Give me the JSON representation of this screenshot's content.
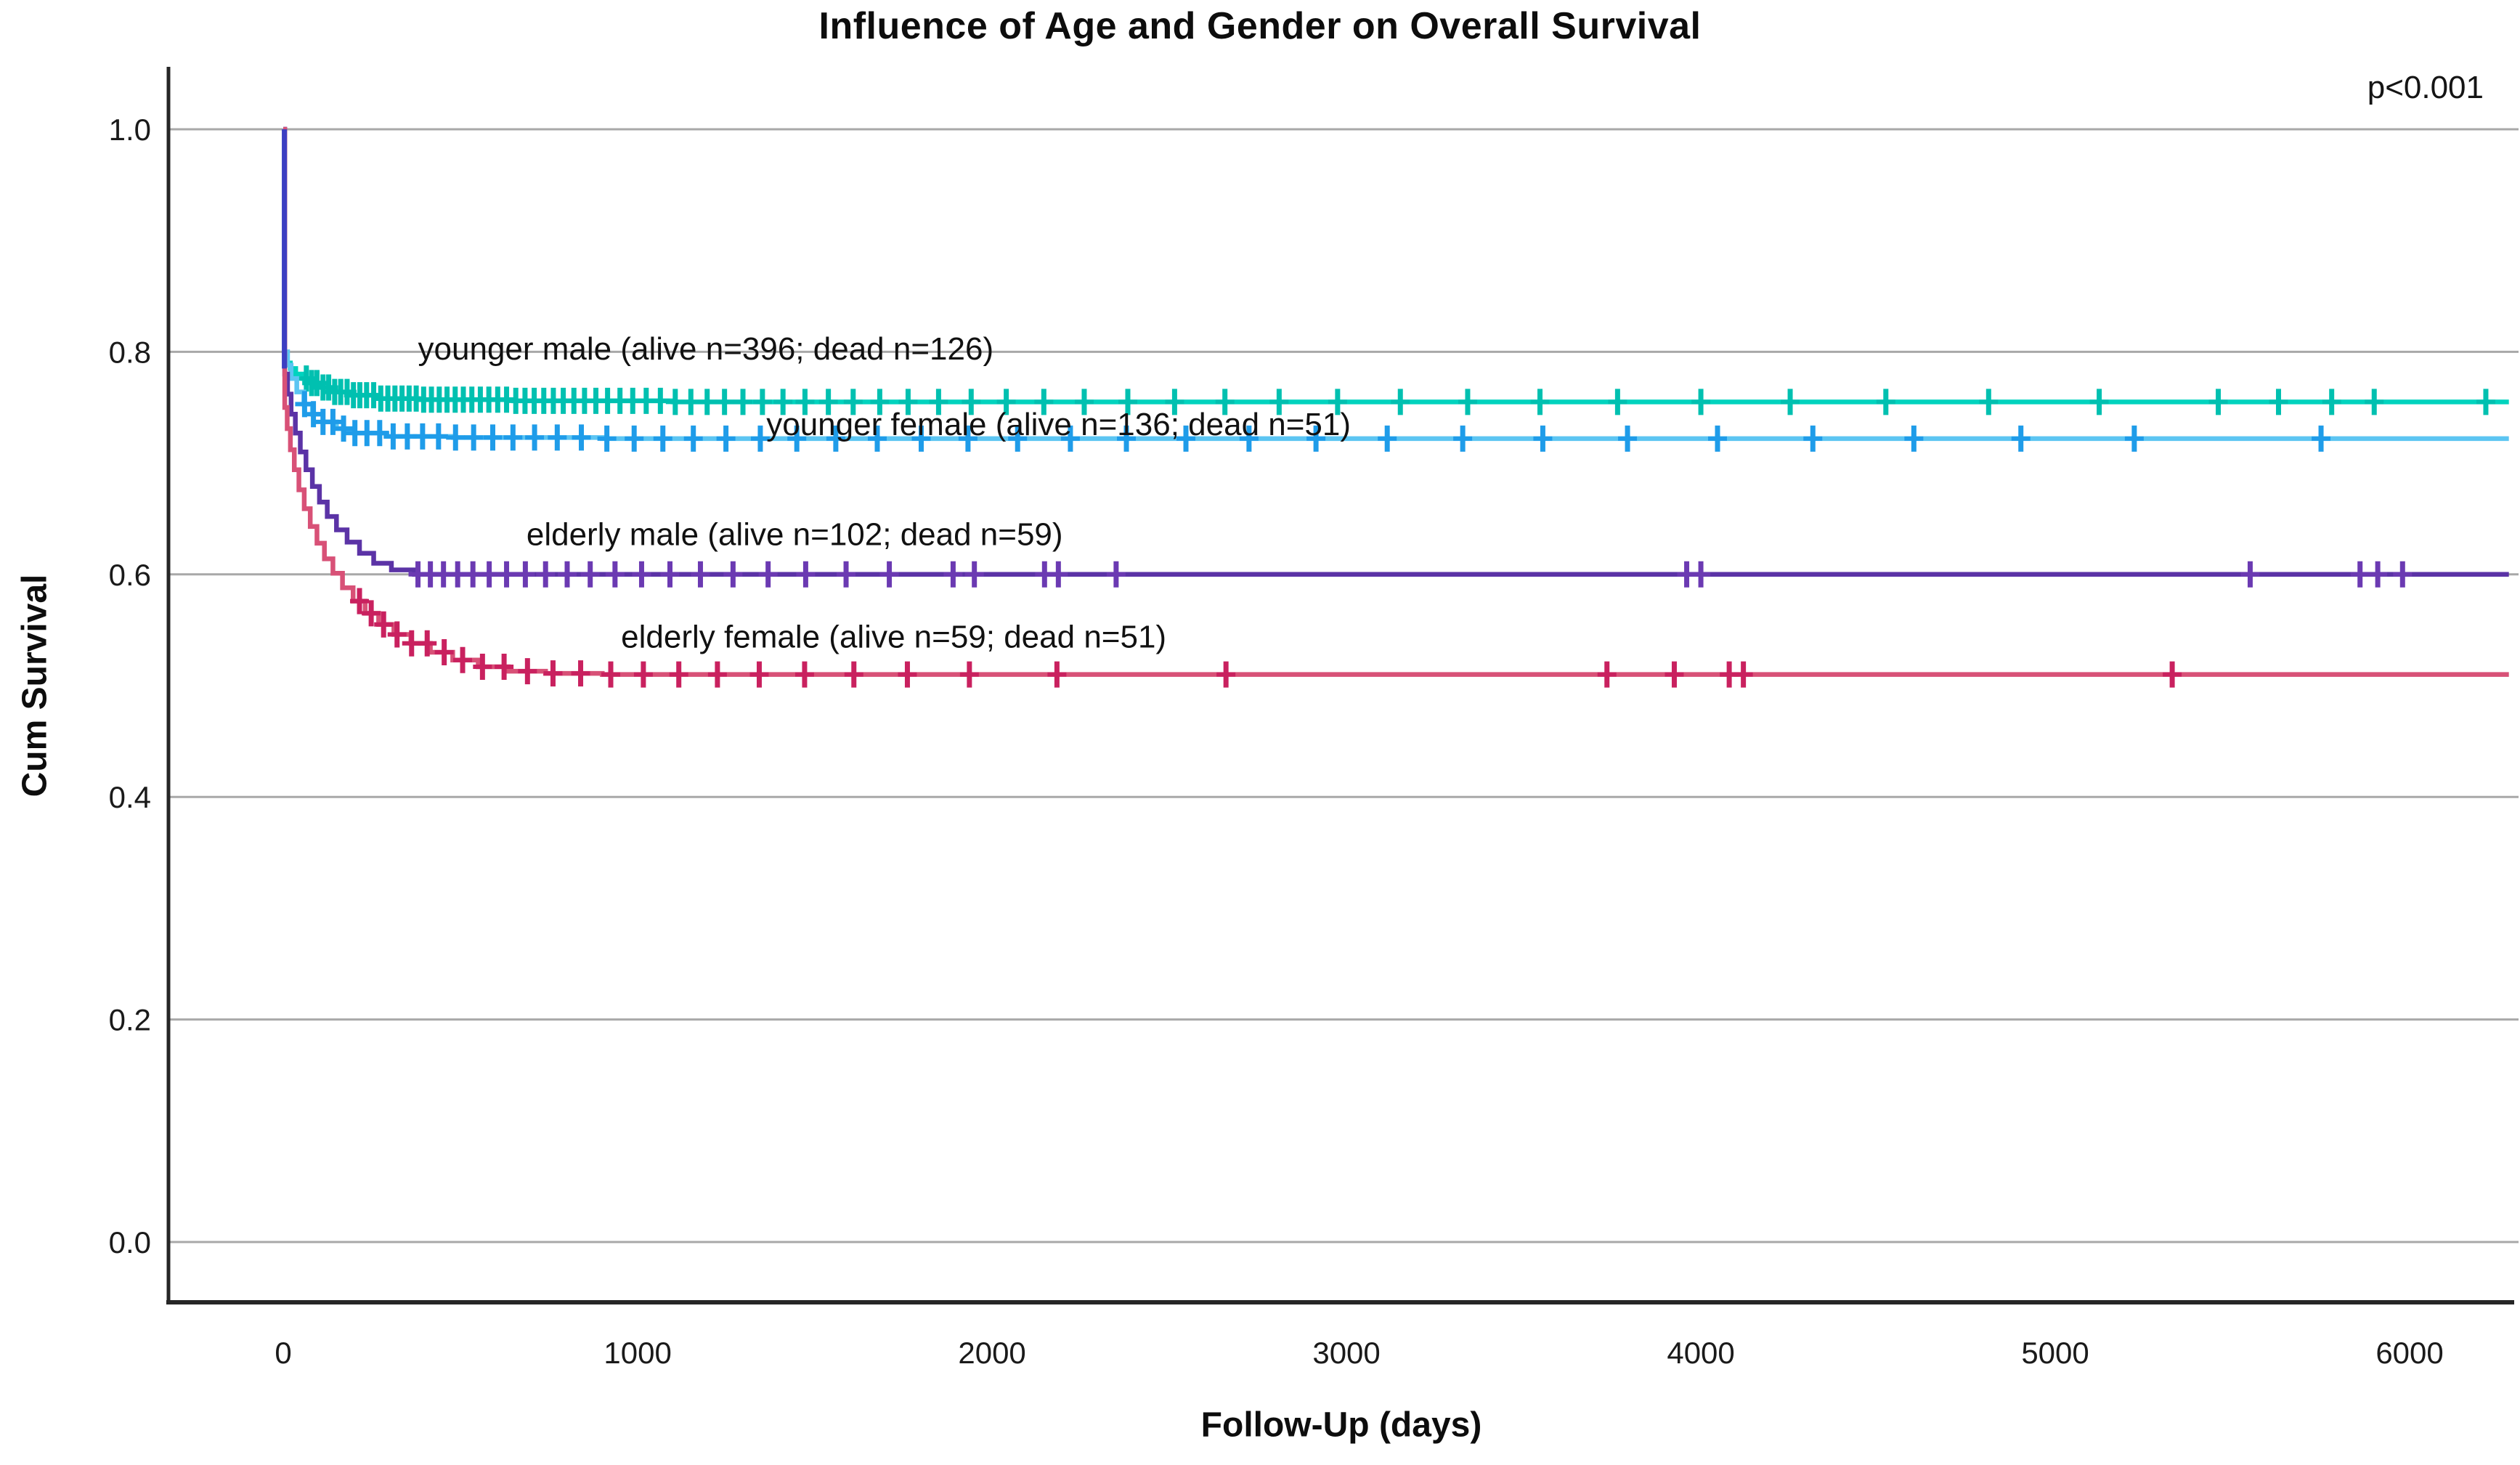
{
  "chart_data": {
    "type": "line",
    "subtype": "kaplan-meier-survival",
    "title": "Influence of Age and Gender on Overall Survival",
    "annotation": "p<0.001",
    "xlabel": "Follow-Up (days)",
    "ylabel": "Cum Survival",
    "xlim": [
      -324,
      6295
    ],
    "ylim": [
      -0.0542,
      1.0542
    ],
    "x_ticks": [
      0,
      1000,
      2000,
      3000,
      4000,
      5000,
      6000
    ],
    "x_tick_labels": [
      "0",
      "1000",
      "2000",
      "3000",
      "4000",
      "5000",
      "6000"
    ],
    "y_ticks": [
      0.0,
      0.2,
      0.4,
      0.6,
      0.8,
      1.0
    ],
    "y_tick_labels": [
      "0.0",
      "0.2",
      "0.4",
      "0.6",
      "0.8",
      "1.0"
    ],
    "grid": "horizontal",
    "gridline_color": "#a8a8a8",
    "axis_color": "#262626",
    "legend_position": "inline-labels",
    "initial_drop": {
      "day": 3,
      "from": 1.0,
      "to": 0.785,
      "color": "#3c3ec2"
    },
    "series": [
      {
        "name": "younger-male",
        "label": "younger male (alive n=396; dead n=126)",
        "label_pos": {
          "x": 380,
          "y": 0.803
        },
        "color": "#00d3be",
        "mark_color": "#00c0b0",
        "plateau": 0.755,
        "steps": [
          [
            0,
            1.0
          ],
          [
            3,
            0.795
          ],
          [
            10,
            0.79
          ],
          [
            20,
            0.785
          ],
          [
            35,
            0.78
          ],
          [
            55,
            0.776
          ],
          [
            80,
            0.772
          ],
          [
            110,
            0.768
          ],
          [
            145,
            0.764
          ],
          [
            190,
            0.761
          ],
          [
            260,
            0.758
          ],
          [
            380,
            0.757
          ],
          [
            650,
            0.756
          ],
          [
            1100,
            0.755
          ],
          [
            6280,
            0.755
          ]
        ],
        "censor_marks": [
          65,
          80,
          95,
          112,
          128,
          145,
          162,
          180,
          198,
          216,
          235,
          255,
          275,
          295,
          315,
          335,
          355,
          375,
          396,
          418,
          440,
          462,
          485,
          508,
          532,
          556,
          580,
          605,
          630,
          656,
          682,
          708,
          735,
          762,
          790,
          820,
          850,
          882,
          915,
          950,
          986,
          1024,
          1064,
          1106,
          1150,
          1196,
          1245,
          1297,
          1352,
          1410,
          1472,
          1538,
          1608,
          1683,
          1763,
          1849,
          1941,
          2040,
          2146,
          2260,
          2383,
          2515,
          2657,
          2810,
          2975,
          3152,
          3342,
          3546,
          3765,
          4000,
          4252,
          4522,
          4812,
          5124,
          5460,
          5630,
          5780,
          5900,
          6215
        ]
      },
      {
        "name": "younger-female",
        "label": "younger female (alive n=136; dead n=51)",
        "label_pos": {
          "x": 1363,
          "y": 0.735
        },
        "color": "#5cc5f2",
        "mark_color": "#1f9ce9",
        "plateau": 0.722,
        "steps": [
          [
            0,
            1.0
          ],
          [
            4,
            0.8
          ],
          [
            12,
            0.788
          ],
          [
            22,
            0.776
          ],
          [
            38,
            0.764
          ],
          [
            58,
            0.753
          ],
          [
            82,
            0.744
          ],
          [
            112,
            0.737
          ],
          [
            150,
            0.731
          ],
          [
            200,
            0.727
          ],
          [
            290,
            0.724
          ],
          [
            480,
            0.723
          ],
          [
            900,
            0.722
          ],
          [
            6280,
            0.722
          ]
        ],
        "censor_marks": [
          60,
          85,
          112,
          140,
          170,
          202,
          236,
          272,
          310,
          350,
          393,
          438,
          486,
          537,
          591,
          648,
          709,
          773,
          841,
          913,
          990,
          1071,
          1157,
          1249,
          1346,
          1449,
          1559,
          1676,
          1800,
          1932,
          2072,
          2221,
          2379,
          2547,
          2725,
          2914,
          3115,
          3328,
          3554,
          3793,
          4047,
          4316,
          4601,
          4903,
          5223,
          5750
        ]
      },
      {
        "name": "elderly-male",
        "label": "elderly male (alive n=102; dead n=59)",
        "label_pos": {
          "x": 686,
          "y": 0.636
        },
        "color": "#5b33a6",
        "mark_color": "#6b3ab2",
        "plateau": 0.6,
        "steps": [
          [
            0,
            1.0
          ],
          [
            4,
            0.78
          ],
          [
            12,
            0.762
          ],
          [
            22,
            0.744
          ],
          [
            34,
            0.727
          ],
          [
            48,
            0.71
          ],
          [
            64,
            0.694
          ],
          [
            82,
            0.679
          ],
          [
            102,
            0.665
          ],
          [
            124,
            0.652
          ],
          [
            150,
            0.64
          ],
          [
            180,
            0.629
          ],
          [
            215,
            0.619
          ],
          [
            255,
            0.61
          ],
          [
            305,
            0.604
          ],
          [
            370,
            0.6
          ],
          [
            6280,
            0.6
          ]
        ],
        "censor_marks": [
          380,
          415,
          452,
          492,
          535,
          581,
          630,
          683,
          740,
          801,
          866,
          936,
          1011,
          1091,
          1177,
          1269,
          1368,
          1474,
          1588,
          1710,
          1890,
          1950,
          2148,
          2187,
          2350,
          3960,
          4000,
          5550,
          5860,
          5910,
          5980
        ]
      },
      {
        "name": "elderly-female",
        "label": "elderly female (alive n=59; dead n=51)",
        "label_pos": {
          "x": 953,
          "y": 0.544
        },
        "color": "#d85177",
        "mark_color": "#c9215f",
        "plateau": 0.51,
        "steps": [
          [
            0,
            1.0
          ],
          [
            4,
            0.75
          ],
          [
            11,
            0.731
          ],
          [
            20,
            0.712
          ],
          [
            31,
            0.694
          ],
          [
            44,
            0.676
          ],
          [
            59,
            0.659
          ],
          [
            76,
            0.643
          ],
          [
            95,
            0.628
          ],
          [
            116,
            0.614
          ],
          [
            140,
            0.601
          ],
          [
            167,
            0.588
          ],
          [
            197,
            0.576
          ],
          [
            231,
            0.565
          ],
          [
            269,
            0.555
          ],
          [
            312,
            0.546
          ],
          [
            360,
            0.538
          ],
          [
            415,
            0.53
          ],
          [
            478,
            0.523
          ],
          [
            550,
            0.517
          ],
          [
            635,
            0.513
          ],
          [
            740,
            0.511
          ],
          [
            900,
            0.51
          ],
          [
            6280,
            0.51
          ]
        ],
        "censor_marks": [
          215,
          248,
          283,
          321,
          362,
          406,
          454,
          506,
          562,
          623,
          689,
          761,
          839,
          924,
          1016,
          1116,
          1225,
          1343,
          1471,
          1610,
          1761,
          1936,
          2183,
          2660,
          3735,
          3925,
          4080,
          4120,
          5330
        ]
      }
    ]
  }
}
